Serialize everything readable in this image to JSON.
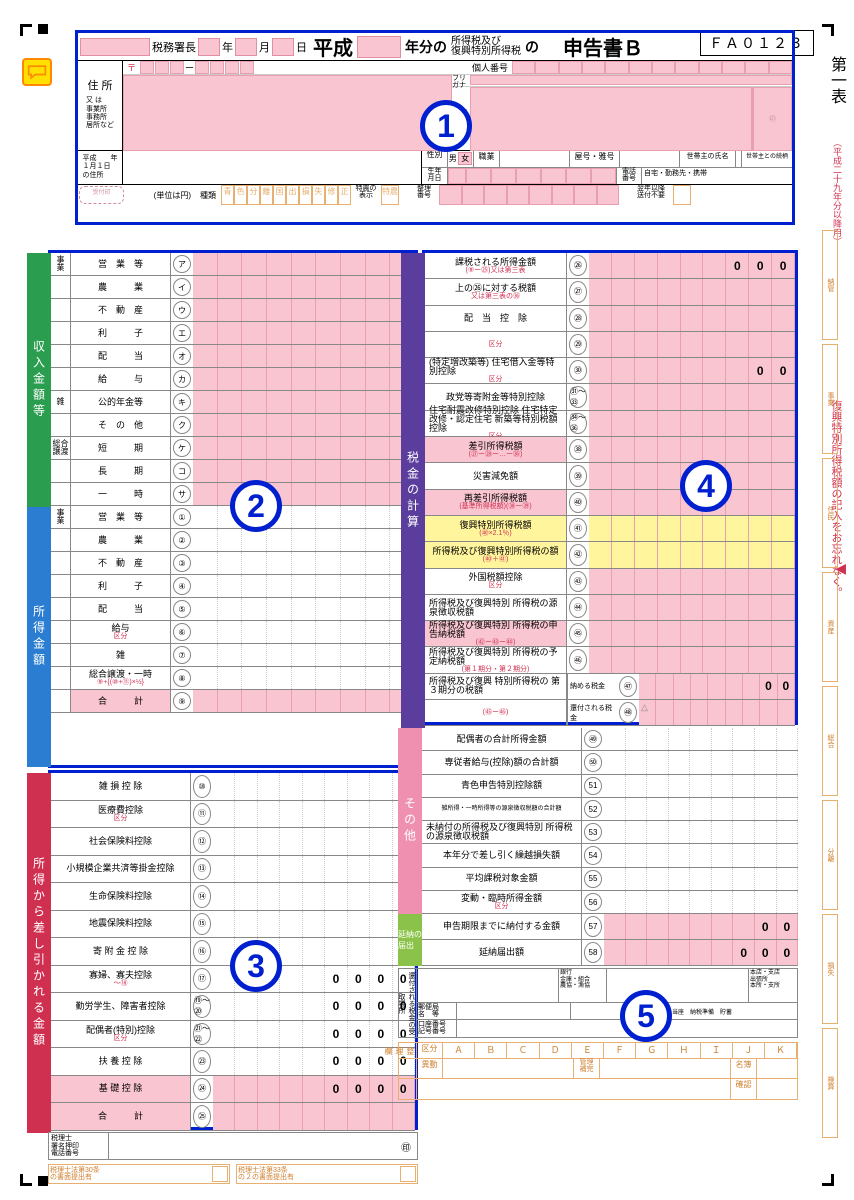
{
  "form": {
    "id": "ＦＡ０１２３",
    "era": "平成",
    "title_suffix": "年分の",
    "tax_type1": "所得税及び",
    "tax_type2": "復興特別所得税",
    "no": "の",
    "declaration": "申告書Ｂ",
    "table_name": "第一表",
    "era_note": "（平成二十九年分以降用）",
    "reminder": "復興特別所得税額の記入をお忘れなく。"
  },
  "header": {
    "tax_office": "税務署長",
    "year": "年",
    "month": "月",
    "day": "日",
    "address_label": "住 所",
    "address_sub": "又 は\n事業所\n事務所\n居所など",
    "postal": "〒",
    "kojin": "個人番号",
    "furigana": "フリガナ",
    "name": "氏 名",
    "gender": "性別",
    "gender_m": "男",
    "gender_f": "女",
    "occupation": "職業",
    "yago": "屋号・雅号",
    "head_name": "世帯主の氏名",
    "head_rel": "世帯主との続柄",
    "birth": "生年\n月日",
    "phone": "電話\n番号",
    "phone_type": "自宅・勤務先・携帯",
    "prev_addr": "平成　　年\n１月１日\nの住所",
    "unit": "(単位は円)",
    "types": "種類",
    "type_cols": "青色分離国出損失修正",
    "tokuno": "特農の\n表示",
    "seiri": "整理\n番号",
    "next_year": "翌年以降\n送付不要"
  },
  "section2": {
    "strip1": "収入金額等",
    "strip2": "所得金額",
    "rows": [
      {
        "grp": "事\n業",
        "label": "営　業　等",
        "num": "ア"
      },
      {
        "grp": "",
        "label": "農　　　業",
        "num": "イ"
      },
      {
        "grp": "",
        "label": "不　動　産",
        "num": "ウ"
      },
      {
        "grp": "",
        "label": "利　　　子",
        "num": "エ"
      },
      {
        "grp": "",
        "label": "配　　　当",
        "num": "オ"
      },
      {
        "grp": "",
        "label": "給　　　与",
        "num": "カ"
      },
      {
        "grp": "雑",
        "label": "公的年金等",
        "num": "キ"
      },
      {
        "grp": "",
        "label": "そ　の　他",
        "num": "ク"
      },
      {
        "grp": "総合\n譲渡",
        "label": "短　　　期",
        "num": "ケ"
      },
      {
        "grp": "",
        "label": "長　　　期",
        "num": "コ"
      },
      {
        "grp": "",
        "label": "一　　　時",
        "num": "サ"
      }
    ],
    "income_rows": [
      {
        "grp": "事\n業",
        "label": "営　業　等",
        "num": "①"
      },
      {
        "grp": "",
        "label": "農　　　業",
        "num": "②"
      },
      {
        "grp": "",
        "label": "不　動　産",
        "num": "③"
      },
      {
        "grp": "",
        "label": "利　　　子",
        "num": "④"
      },
      {
        "grp": "",
        "label": "配　　　当",
        "num": "⑤"
      },
      {
        "grp": "",
        "label": "給与",
        "sub": "区分",
        "num": "⑥"
      },
      {
        "grp": "",
        "label": "雑",
        "num": "⑦"
      },
      {
        "grp": "",
        "label": "総合譲渡・一時",
        "sub": "⑨+{(⑩+⑪)×½}",
        "num": "⑧"
      },
      {
        "grp": "",
        "label": "合　　　計",
        "num": "⑨",
        "pink": true
      }
    ]
  },
  "section3": {
    "strip": "所得から差し引かれる金額",
    "rows": [
      {
        "label": "雑 損 控 除",
        "num": "⑩"
      },
      {
        "label": "医療費控除",
        "sub": "区分",
        "num": "⑪"
      },
      {
        "label": "社会保険料控除",
        "num": "⑫"
      },
      {
        "label": "小規模企業共済等掛金控除",
        "num": "⑬"
      },
      {
        "label": "生命保険料控除",
        "num": "⑭"
      },
      {
        "label": "地震保険料控除",
        "num": "⑮"
      },
      {
        "label": "寄 附 金 控 除",
        "num": "⑯"
      },
      {
        "label": "寡婦、寡夫控除",
        "num": "⑰",
        "zeros": true,
        "sub": "～⑱"
      },
      {
        "label": "勤労学生、障害者控除",
        "num": "⑲～⑳",
        "zeros": true
      },
      {
        "label": "配偶者(特別)控除",
        "sub": "区分",
        "num": "㉑～㉒",
        "zeros": true
      },
      {
        "label": "扶 養 控 除",
        "num": "㉓",
        "zeros": true
      },
      {
        "label": "基 礎 控 除",
        "num": "㉔",
        "pink": true,
        "zeros": true
      },
      {
        "label": "合　　　計",
        "num": "㉕",
        "pink": true
      }
    ]
  },
  "section4": {
    "strip": "税金の計算",
    "rows": [
      {
        "label": "課税される所得金額",
        "sub": "(⑨ー㉕)又は第三表",
        "num": "㉖",
        "zeros": "000"
      },
      {
        "label": "上の㉖に対する税額",
        "sub": "又は第三表の㊱",
        "num": "㉗"
      },
      {
        "label": "配　当　控　除",
        "num": "㉘"
      },
      {
        "label": "",
        "sub": "区分",
        "num": "㉙"
      },
      {
        "label": "(特定増改築等)\n住宅借入金等特別控除",
        "sub": "区分",
        "num": "㉚",
        "zeros": "00"
      },
      {
        "label": "政党等寄附金等特別控除",
        "num": "㉛～㉝"
      },
      {
        "label": "住宅耐震改修特別控除\n住宅特定改修・認定住宅\n新築等特別税額控除",
        "sub": "区分",
        "num": "㉞～㊱"
      },
      {
        "label": "差引所得税額",
        "sub": "(㉗ー㉘ー…ー㊱)",
        "num": "㊳",
        "pink": true
      },
      {
        "label": "災害減免額",
        "num": "㊴"
      },
      {
        "label": "再差引所得税額",
        "sub": "(基準所得税額)(㊳ー㊴)",
        "num": "㊵",
        "pink": true
      },
      {
        "label": "復興特別所得税額",
        "sub": "(㊵×2.1％)",
        "num": "㊶",
        "yellow": true
      },
      {
        "label": "所得税及び復興特別所得税の額",
        "sub": "(㊵＋㊶)",
        "num": "㊷",
        "yellow": true
      },
      {
        "label": "外国税額控除",
        "sub": "区分",
        "num": "㊸"
      },
      {
        "label": "所得税及び復興特別\n所得税の源泉徴収税額",
        "num": "㊹"
      },
      {
        "label": "所得税及び復興特別\n所得税の申告納税額",
        "sub": "(㊷ー㊸ー㊹)",
        "num": "㊺",
        "pink": true
      },
      {
        "label": "所得税及び復興特別\n所得税の予定納税額",
        "sub": "(第１期分・第２期分)",
        "num": "㊻"
      },
      {
        "label": "所得税及び復興\n特別所得税の\n第３期分の税額",
        "split": "納める税金",
        "num": "㊼",
        "zeros": "00"
      },
      {
        "label": "",
        "split": "還付される税金",
        "sub": "(㊺ー㊻)",
        "num": "㊽",
        "triangle": true
      }
    ]
  },
  "section5": {
    "strip": "その他",
    "rows": [
      {
        "label": "配偶者の合計所得金額",
        "num": "㊾"
      },
      {
        "label": "専従者給与(控除)額の合計額",
        "num": "㊿"
      },
      {
        "label": "青色申告特別控除額",
        "num": "51"
      },
      {
        "label": "雑所得・一時所得等の源泉徴収税額の合計額",
        "num": "52",
        "small": true
      },
      {
        "label": "未納付の所得税及び復興特別\n所得税の源泉徴収税額",
        "num": "53"
      },
      {
        "label": "本年分で差し引く繰越損失額",
        "num": "54"
      },
      {
        "label": "平均課税対象金額",
        "num": "55"
      },
      {
        "label": "変動・臨時所得金額",
        "sub": "区分",
        "num": "56"
      }
    ],
    "strip2": "延納の\n届出",
    "rows2": [
      {
        "label": "申告期限までに納付する金額",
        "num": "57",
        "zeros": "00"
      },
      {
        "label": "延納届出額",
        "num": "58",
        "zeros": "000"
      }
    ]
  },
  "footer": {
    "refund": "還付される税金の受取場所",
    "bank": "銀行\n金庫・組合\n農協・漁協",
    "branch": "本店・支店\n出張所\n本所・支所",
    "post": "郵便局\n名　等",
    "account_type": "預金　普通　当座　納税準備　貯蓄",
    "account": "口座番号\n記号番号",
    "kubun": "区分",
    "kubun_cols": "ＡＢＣＤＥＦＧＨＩＪＫ",
    "seiri": "整理欄",
    "ido": "異動",
    "kanri": "管理\n補完",
    "meibo": "名簿",
    "kakunin": "確認",
    "tax_acc": "税理士\n署名押印\n電話番号",
    "stamp": "㊞",
    "law30": "税理士法第30条\nの書面提出有",
    "law33": "税理士法第33条\nの２の書面提出有"
  },
  "sidebar": [
    "納管",
    "事業",
    "住民",
    "資産",
    "総合",
    "分離",
    "損失",
    "検算"
  ],
  "colors": {
    "blue": "#0020d0",
    "pink": "#f9c5d1",
    "green": "#2a9d4f",
    "lightblue": "#2a7dd0",
    "violet": "#5a3d9d",
    "red": "#d03050",
    "yellow": "#fff59d",
    "orange": "#e8b070"
  }
}
